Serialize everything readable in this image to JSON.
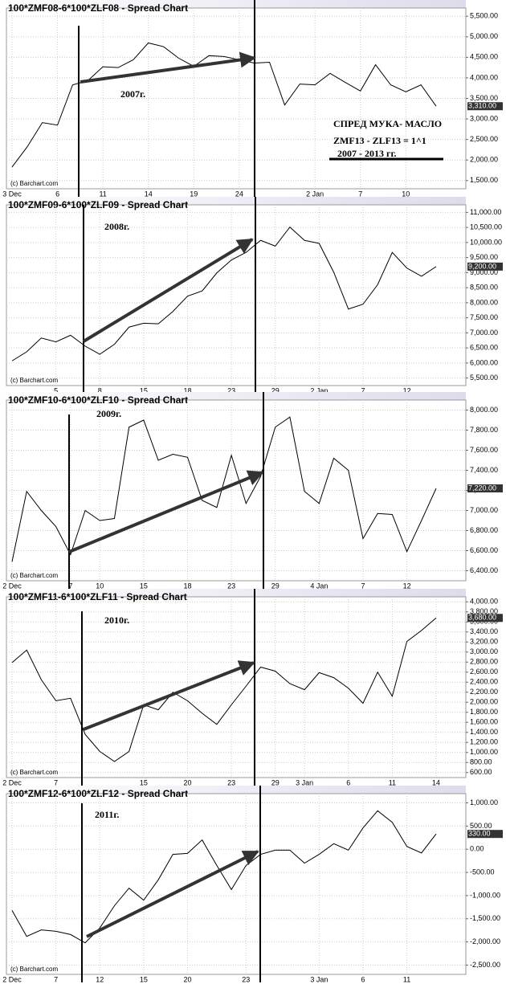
{
  "chart_data": [
    {
      "type": "line",
      "title": "100*ZMF08-6*100*ZLF08 - Spread Chart",
      "source": "(c) Barchart.com",
      "annotations": [
        "2007г.",
        "СПРЕД МУКА- МАСЛО",
        "ZMF13 - ZLF13 = 1^1",
        "2007 - 2013 гг."
      ],
      "categories": [
        "3 Dec",
        null,
        null,
        "6",
        null,
        null,
        "11",
        null,
        null,
        "14",
        null,
        null,
        "19",
        null,
        null,
        "24",
        null,
        null,
        null,
        null,
        "2 Jan",
        null,
        null,
        "7",
        null,
        null,
        "10",
        null,
        null
      ],
      "series": [
        {
          "name": "100*ZMF08-6*100*ZLF08",
          "color": "#000000",
          "values": [
            1830,
            2320,
            2910,
            2850,
            3830,
            3930,
            4270,
            4250,
            4440,
            4850,
            4760,
            4480,
            4280,
            4540,
            4520,
            4440,
            4360,
            4380,
            3340,
            3850,
            3830,
            4110,
            3890,
            3680,
            4320,
            3830,
            3660,
            3830,
            3310
          ]
        }
      ],
      "last_value_label": "3,310.00",
      "ylim": [
        1300,
        5700
      ],
      "yticks": [
        {
          "value": 1500,
          "label": "1,500.00"
        },
        {
          "value": 2000,
          "label": "2,000.00"
        },
        {
          "value": 2500,
          "label": "2,500.00"
        },
        {
          "value": 3000,
          "label": "3,000.00"
        },
        {
          "value": 3500,
          "label": "3,500.00"
        },
        {
          "value": 4000,
          "label": "4,000.00"
        },
        {
          "value": 4500,
          "label": "4,500.00"
        },
        {
          "value": 5000,
          "label": "5,000.00"
        },
        {
          "value": 5500,
          "label": "5,500.00"
        }
      ],
      "grid": true
    },
    {
      "type": "line",
      "title": "100*ZMF09-6*100*ZLF09 - Spread Chart",
      "source": "(c) Barchart.com",
      "annotations": [
        "2008г."
      ],
      "categories": [
        null,
        null,
        null,
        "5",
        null,
        null,
        "8",
        null,
        null,
        "15",
        null,
        null,
        "18",
        null,
        null,
        "23",
        null,
        null,
        "29",
        null,
        null,
        "2 Jan",
        null,
        null,
        "7",
        null,
        null,
        "12",
        null,
        null
      ],
      "series": [
        {
          "name": "100*ZMF09-6*100*ZLF09",
          "color": "#000000",
          "values": [
            6070,
            6370,
            6830,
            6700,
            6920,
            6560,
            6290,
            6620,
            7190,
            7320,
            7300,
            7710,
            8220,
            8390,
            8990,
            9420,
            9670,
            10070,
            9880,
            10510,
            10070,
            9970,
            9010,
            7790,
            7950,
            8600,
            9670,
            9150,
            8880,
            9200
          ]
        }
      ],
      "last_value_label": "9,200.00",
      "ylim": [
        5250,
        11250
      ],
      "yticks": [
        {
          "value": 5500,
          "label": "5,500.00"
        },
        {
          "value": 6000,
          "label": "6,000.00"
        },
        {
          "value": 6500,
          "label": "6,500.00"
        },
        {
          "value": 7000,
          "label": "7,000.00"
        },
        {
          "value": 7500,
          "label": "7,500.00"
        },
        {
          "value": 8000,
          "label": "8,000.00"
        },
        {
          "value": 8500,
          "label": "8,500.00"
        },
        {
          "value": 9000,
          "label": "9,000.00"
        },
        {
          "value": 9500,
          "label": "9,500.00"
        },
        {
          "value": 10000,
          "label": "10,000.00"
        },
        {
          "value": 10500,
          "label": "10,500.00"
        },
        {
          "value": 11000,
          "label": "11,000.00"
        }
      ],
      "grid": true
    },
    {
      "type": "line",
      "title": "100*ZMF10-6*100*ZLF10 - Spread Chart",
      "source": "(c) Barchart.com",
      "annotations": [
        "2009г."
      ],
      "categories": [
        "2 Dec",
        null,
        null,
        null,
        "7",
        null,
        "10",
        null,
        null,
        "15",
        null,
        null,
        "18",
        null,
        null,
        "23",
        null,
        null,
        "29",
        null,
        null,
        "4 Jan",
        null,
        null,
        "7",
        null,
        null,
        "12",
        null,
        null
      ],
      "series": [
        {
          "name": "100*ZMF10-6*100*ZLF10",
          "color": "#000000",
          "values": [
            6490,
            7190,
            7000,
            6840,
            6560,
            7000,
            6900,
            6920,
            7830,
            7900,
            7500,
            7560,
            7530,
            7100,
            7030,
            7550,
            7070,
            7340,
            7830,
            7930,
            7190,
            7070,
            7520,
            7400,
            6720,
            6970,
            6960,
            6590,
            6900,
            7220
          ]
        }
      ],
      "last_value_label": "7,220.00",
      "ylim": [
        6300,
        8100
      ],
      "yticks": [
        {
          "value": 6400,
          "label": "6,400.00"
        },
        {
          "value": 6600,
          "label": "6,600.00"
        },
        {
          "value": 6800,
          "label": "6,800.00"
        },
        {
          "value": 7000,
          "label": "7,000.00"
        },
        {
          "value": 7200,
          "label": "7,200.00"
        },
        {
          "value": 7400,
          "label": "7,400.00"
        },
        {
          "value": 7600,
          "label": "7,600.00"
        },
        {
          "value": 7800,
          "label": "7,800.00"
        },
        {
          "value": 8000,
          "label": "8,000.00"
        }
      ],
      "grid": true
    },
    {
      "type": "line",
      "title": "100*ZMF11-6*100*ZLF11 - Spread Chart",
      "source": "(c) Barchart.com",
      "annotations": [
        "2010г."
      ],
      "categories": [
        "2 Dec",
        null,
        null,
        "7",
        null,
        null,
        null,
        null,
        null,
        "15",
        null,
        null,
        "20",
        null,
        null,
        "23",
        null,
        null,
        "29",
        null,
        "3 Jan",
        null,
        null,
        "6",
        null,
        null,
        "11",
        null,
        null,
        "14"
      ],
      "series": [
        {
          "name": "100*ZMF11-6*100*ZLF11",
          "color": "#000000",
          "values": [
            2790,
            3040,
            2450,
            2030,
            2080,
            1360,
            1020,
            820,
            1020,
            1950,
            1850,
            2200,
            2030,
            1780,
            1560,
            1950,
            2320,
            2700,
            2620,
            2370,
            2250,
            2590,
            2490,
            2280,
            1980,
            2600,
            2120,
            3210,
            3430,
            3680
          ]
        }
      ],
      "last_value_label": "3,680.00",
      "ylim": [
        500,
        4100
      ],
      "yticks": [
        {
          "value": 600,
          "label": "600.00"
        },
        {
          "value": 800,
          "label": "800.00"
        },
        {
          "value": 1000,
          "label": "1,000.00"
        },
        {
          "value": 1200,
          "label": "1,200.00"
        },
        {
          "value": 1400,
          "label": "1,400.00"
        },
        {
          "value": 1600,
          "label": "1,600.00"
        },
        {
          "value": 1800,
          "label": "1,800.00"
        },
        {
          "value": 2000,
          "label": "2,000.00"
        },
        {
          "value": 2200,
          "label": "2,200.00"
        },
        {
          "value": 2400,
          "label": "2,400.00"
        },
        {
          "value": 2600,
          "label": "2,600.00"
        },
        {
          "value": 2800,
          "label": "2,800.00"
        },
        {
          "value": 3000,
          "label": "3,000.00"
        },
        {
          "value": 3200,
          "label": "3,200.00"
        },
        {
          "value": 3400,
          "label": "3,400.00"
        },
        {
          "value": 3600,
          "label": "3,600.00"
        },
        {
          "value": 3800,
          "label": "3,800.00"
        },
        {
          "value": 4000,
          "label": "4,000.00"
        }
      ],
      "grid": true
    },
    {
      "type": "line",
      "title": "100*ZMF12-6*100*ZLF12 - Spread Chart",
      "source": "(c) Barchart.com",
      "annotations": [
        "2011г."
      ],
      "categories": [
        "2 Dec",
        null,
        null,
        "7",
        null,
        null,
        "12",
        null,
        null,
        "15",
        null,
        null,
        "20",
        null,
        null,
        null,
        "23",
        null,
        null,
        null,
        null,
        "3 Jan",
        null,
        null,
        "6",
        null,
        null,
        "11",
        null,
        null
      ],
      "series": [
        {
          "name": "100*ZMF12-6*100*ZLF12",
          "color": "#000000",
          "values": [
            -1320,
            -1880,
            -1740,
            -1770,
            -1840,
            -2020,
            -1700,
            -1220,
            -840,
            -1100,
            -660,
            -110,
            -90,
            200,
            -350,
            -870,
            -350,
            -110,
            -20,
            -20,
            -300,
            -110,
            120,
            -20,
            460,
            830,
            580,
            60,
            -80,
            330
          ]
        }
      ],
      "last_value_label": "330.00",
      "ylim": [
        -2700,
        1200
      ],
      "yticks": [
        {
          "value": -2500,
          "label": "-2,500.00"
        },
        {
          "value": -2000,
          "label": "-2,000.00"
        },
        {
          "value": -1500,
          "label": "-1,500.00"
        },
        {
          "value": -1000,
          "label": "-1,000.00"
        },
        {
          "value": -500,
          "label": "-500.00"
        },
        {
          "value": 0,
          "label": "0.00"
        },
        {
          "value": 500,
          "label": "500.00"
        },
        {
          "value": 1000,
          "label": "1,000.00"
        }
      ],
      "grid": true
    }
  ]
}
